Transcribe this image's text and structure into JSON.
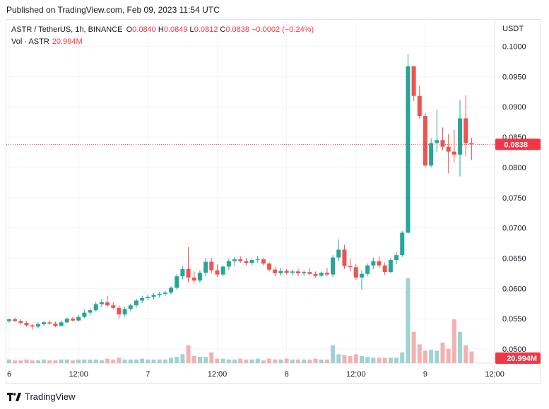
{
  "header": {
    "published": "Published on TradingView.com, Feb 09, 2023 11:54 UTC"
  },
  "legend": {
    "symbol": "ASTR / TetherUS, 1h, BINANCE",
    "o_label": "O",
    "o": "0.0840",
    "h_label": "H",
    "h": "0.0849",
    "l_label": "L",
    "l": "0.0812",
    "c_label": "C",
    "c": "0.0838",
    "change": "−0.0002 (−0.24%)",
    "vol_label": "Vol · ASTR",
    "vol_value": "20.994M"
  },
  "axis": {
    "currency": "USDT"
  },
  "footer": {
    "brand": "TradingView"
  },
  "colors": {
    "up": "#26a69a",
    "down": "#ef5350",
    "up_vol": "#9fd3cf",
    "down_vol": "#f5b1b0",
    "last_price": "#f23645"
  },
  "chart_data": {
    "type": "candlestick",
    "title": "ASTR / TetherUS, 1h, BINANCE",
    "ylim": [
      0.05,
      0.1
    ],
    "y_ticks": [
      "0.1000",
      "0.0950",
      "0.0900",
      "0.0850",
      "0.0800",
      "0.0750",
      "0.0700",
      "0.0650",
      "0.0600",
      "0.0550",
      "0.0500"
    ],
    "y_tick_values": [
      0.1,
      0.095,
      0.09,
      0.085,
      0.08,
      0.075,
      0.07,
      0.065,
      0.06,
      0.055,
      0.05
    ],
    "x_ticks": [
      "6",
      "12:00",
      "7",
      "12:00",
      "8",
      "12:00",
      "9",
      "12:00"
    ],
    "x_tick_index": [
      0,
      12,
      24,
      36,
      48,
      60,
      72,
      84
    ],
    "last_price": 0.0838,
    "last_price_label": "0.0838",
    "volume_label": "20.994M",
    "candles": [
      [
        0.0546,
        0.055,
        0.0543,
        0.0549
      ],
      [
        0.0549,
        0.0552,
        0.0545,
        0.0546
      ],
      [
        0.0546,
        0.0549,
        0.054,
        0.0543
      ],
      [
        0.0543,
        0.0546,
        0.0537,
        0.0539
      ],
      [
        0.0539,
        0.0541,
        0.0532,
        0.0537
      ],
      [
        0.0537,
        0.0544,
        0.0534,
        0.0541
      ],
      [
        0.0541,
        0.0546,
        0.0538,
        0.0544
      ],
      [
        0.0544,
        0.0547,
        0.054,
        0.0542
      ],
      [
        0.0542,
        0.0545,
        0.0536,
        0.0538
      ],
      [
        0.0538,
        0.0547,
        0.0537,
        0.0544
      ],
      [
        0.0544,
        0.0552,
        0.0542,
        0.055
      ],
      [
        0.055,
        0.0553,
        0.0545,
        0.0547
      ],
      [
        0.0547,
        0.0556,
        0.0545,
        0.0553
      ],
      [
        0.0553,
        0.0565,
        0.0551,
        0.056
      ],
      [
        0.056,
        0.0567,
        0.0555,
        0.0564
      ],
      [
        0.0564,
        0.0578,
        0.0562,
        0.0574
      ],
      [
        0.0574,
        0.0582,
        0.0569,
        0.0577
      ],
      [
        0.0577,
        0.0588,
        0.057,
        0.0572
      ],
      [
        0.0572,
        0.0577,
        0.0565,
        0.0568
      ],
      [
        0.0568,
        0.0572,
        0.055,
        0.0557
      ],
      [
        0.0557,
        0.057,
        0.0553,
        0.0566
      ],
      [
        0.0566,
        0.0575,
        0.0562,
        0.0572
      ],
      [
        0.0572,
        0.0583,
        0.0568,
        0.058
      ],
      [
        0.058,
        0.0588,
        0.0576,
        0.0584
      ],
      [
        0.0584,
        0.059,
        0.058,
        0.0586
      ],
      [
        0.0586,
        0.0592,
        0.0582,
        0.0589
      ],
      [
        0.0589,
        0.0594,
        0.0585,
        0.0591
      ],
      [
        0.0591,
        0.0596,
        0.0587,
        0.0593
      ],
      [
        0.0593,
        0.0604,
        0.059,
        0.0601
      ],
      [
        0.0601,
        0.0624,
        0.0598,
        0.062
      ],
      [
        0.062,
        0.0637,
        0.0615,
        0.0632
      ],
      [
        0.0632,
        0.0668,
        0.061,
        0.0618
      ],
      [
        0.0618,
        0.0628,
        0.0608,
        0.0613
      ],
      [
        0.0613,
        0.063,
        0.0609,
        0.0626
      ],
      [
        0.0626,
        0.065,
        0.062,
        0.0644
      ],
      [
        0.0644,
        0.065,
        0.0625,
        0.063
      ],
      [
        0.063,
        0.064,
        0.0619,
        0.0623
      ],
      [
        0.0623,
        0.0638,
        0.062,
        0.0636
      ],
      [
        0.0636,
        0.0649,
        0.063,
        0.0645
      ],
      [
        0.0645,
        0.0652,
        0.0637,
        0.0648
      ],
      [
        0.0648,
        0.0653,
        0.0642,
        0.0645
      ],
      [
        0.0645,
        0.065,
        0.0638,
        0.0642
      ],
      [
        0.0642,
        0.0649,
        0.0638,
        0.0647
      ],
      [
        0.0647,
        0.0654,
        0.0642,
        0.0648
      ],
      [
        0.0648,
        0.065,
        0.0638,
        0.0641
      ],
      [
        0.0641,
        0.0643,
        0.0628,
        0.0631
      ],
      [
        0.0631,
        0.0636,
        0.062,
        0.0625
      ],
      [
        0.0625,
        0.0634,
        0.0621,
        0.0629
      ],
      [
        0.0629,
        0.0632,
        0.0623,
        0.0626
      ],
      [
        0.0626,
        0.0631,
        0.0622,
        0.0628
      ],
      [
        0.0628,
        0.0632,
        0.062,
        0.0625
      ],
      [
        0.0625,
        0.063,
        0.0621,
        0.0627
      ],
      [
        0.0627,
        0.0634,
        0.0622,
        0.0624
      ],
      [
        0.0624,
        0.0628,
        0.0618,
        0.0621
      ],
      [
        0.0621,
        0.0628,
        0.0619,
        0.0626
      ],
      [
        0.0626,
        0.0634,
        0.062,
        0.0623
      ],
      [
        0.0623,
        0.0655,
        0.0619,
        0.0651
      ],
      [
        0.0651,
        0.0681,
        0.0645,
        0.0664
      ],
      [
        0.0664,
        0.0672,
        0.0632,
        0.0637
      ],
      [
        0.0637,
        0.0649,
        0.0628,
        0.0635
      ],
      [
        0.0635,
        0.064,
        0.0614,
        0.0618
      ],
      [
        0.0618,
        0.063,
        0.0598,
        0.0624
      ],
      [
        0.0624,
        0.0641,
        0.062,
        0.0638
      ],
      [
        0.0638,
        0.0651,
        0.0632,
        0.0645
      ],
      [
        0.0645,
        0.0653,
        0.0634,
        0.0638
      ],
      [
        0.0638,
        0.0643,
        0.0622,
        0.0627
      ],
      [
        0.0627,
        0.065,
        0.0625,
        0.0647
      ],
      [
        0.0647,
        0.066,
        0.064,
        0.0655
      ],
      [
        0.0655,
        0.0695,
        0.0652,
        0.0692
      ],
      [
        0.0692,
        0.0987,
        0.069,
        0.0967
      ],
      [
        0.0967,
        0.0965,
        0.091,
        0.0918
      ],
      [
        0.0918,
        0.0935,
        0.088,
        0.0885
      ],
      [
        0.0885,
        0.089,
        0.08,
        0.0803
      ],
      [
        0.0803,
        0.0848,
        0.08,
        0.084
      ],
      [
        0.084,
        0.0895,
        0.0825,
        0.0845
      ],
      [
        0.0845,
        0.0866,
        0.0828,
        0.0834
      ],
      [
        0.0834,
        0.0855,
        0.079,
        0.0826
      ],
      [
        0.0826,
        0.0862,
        0.0808,
        0.0821
      ],
      [
        0.0821,
        0.0911,
        0.0785,
        0.0881
      ],
      [
        0.0881,
        0.0919,
        0.0818,
        0.084
      ],
      [
        0.084,
        0.0849,
        0.0812,
        0.0838
      ]
    ],
    "volume": [
      4,
      3,
      3,
      4,
      3,
      3,
      4,
      3,
      3,
      4,
      4,
      3,
      4,
      4,
      4,
      4,
      3,
      5,
      4,
      6,
      4,
      4,
      4,
      5,
      4,
      4,
      4,
      4,
      6,
      7,
      10,
      20,
      8,
      7,
      7,
      12,
      5,
      5,
      4,
      4,
      5,
      4,
      4,
      5,
      3,
      5,
      4,
      4,
      5,
      4,
      4,
      4,
      4,
      5,
      4,
      4,
      20,
      10,
      9,
      8,
      10,
      8,
      7,
      6,
      6,
      6,
      6,
      6,
      12,
      95,
      35,
      21,
      14,
      15,
      14,
      23,
      16,
      49,
      35,
      20,
      13
    ]
  }
}
